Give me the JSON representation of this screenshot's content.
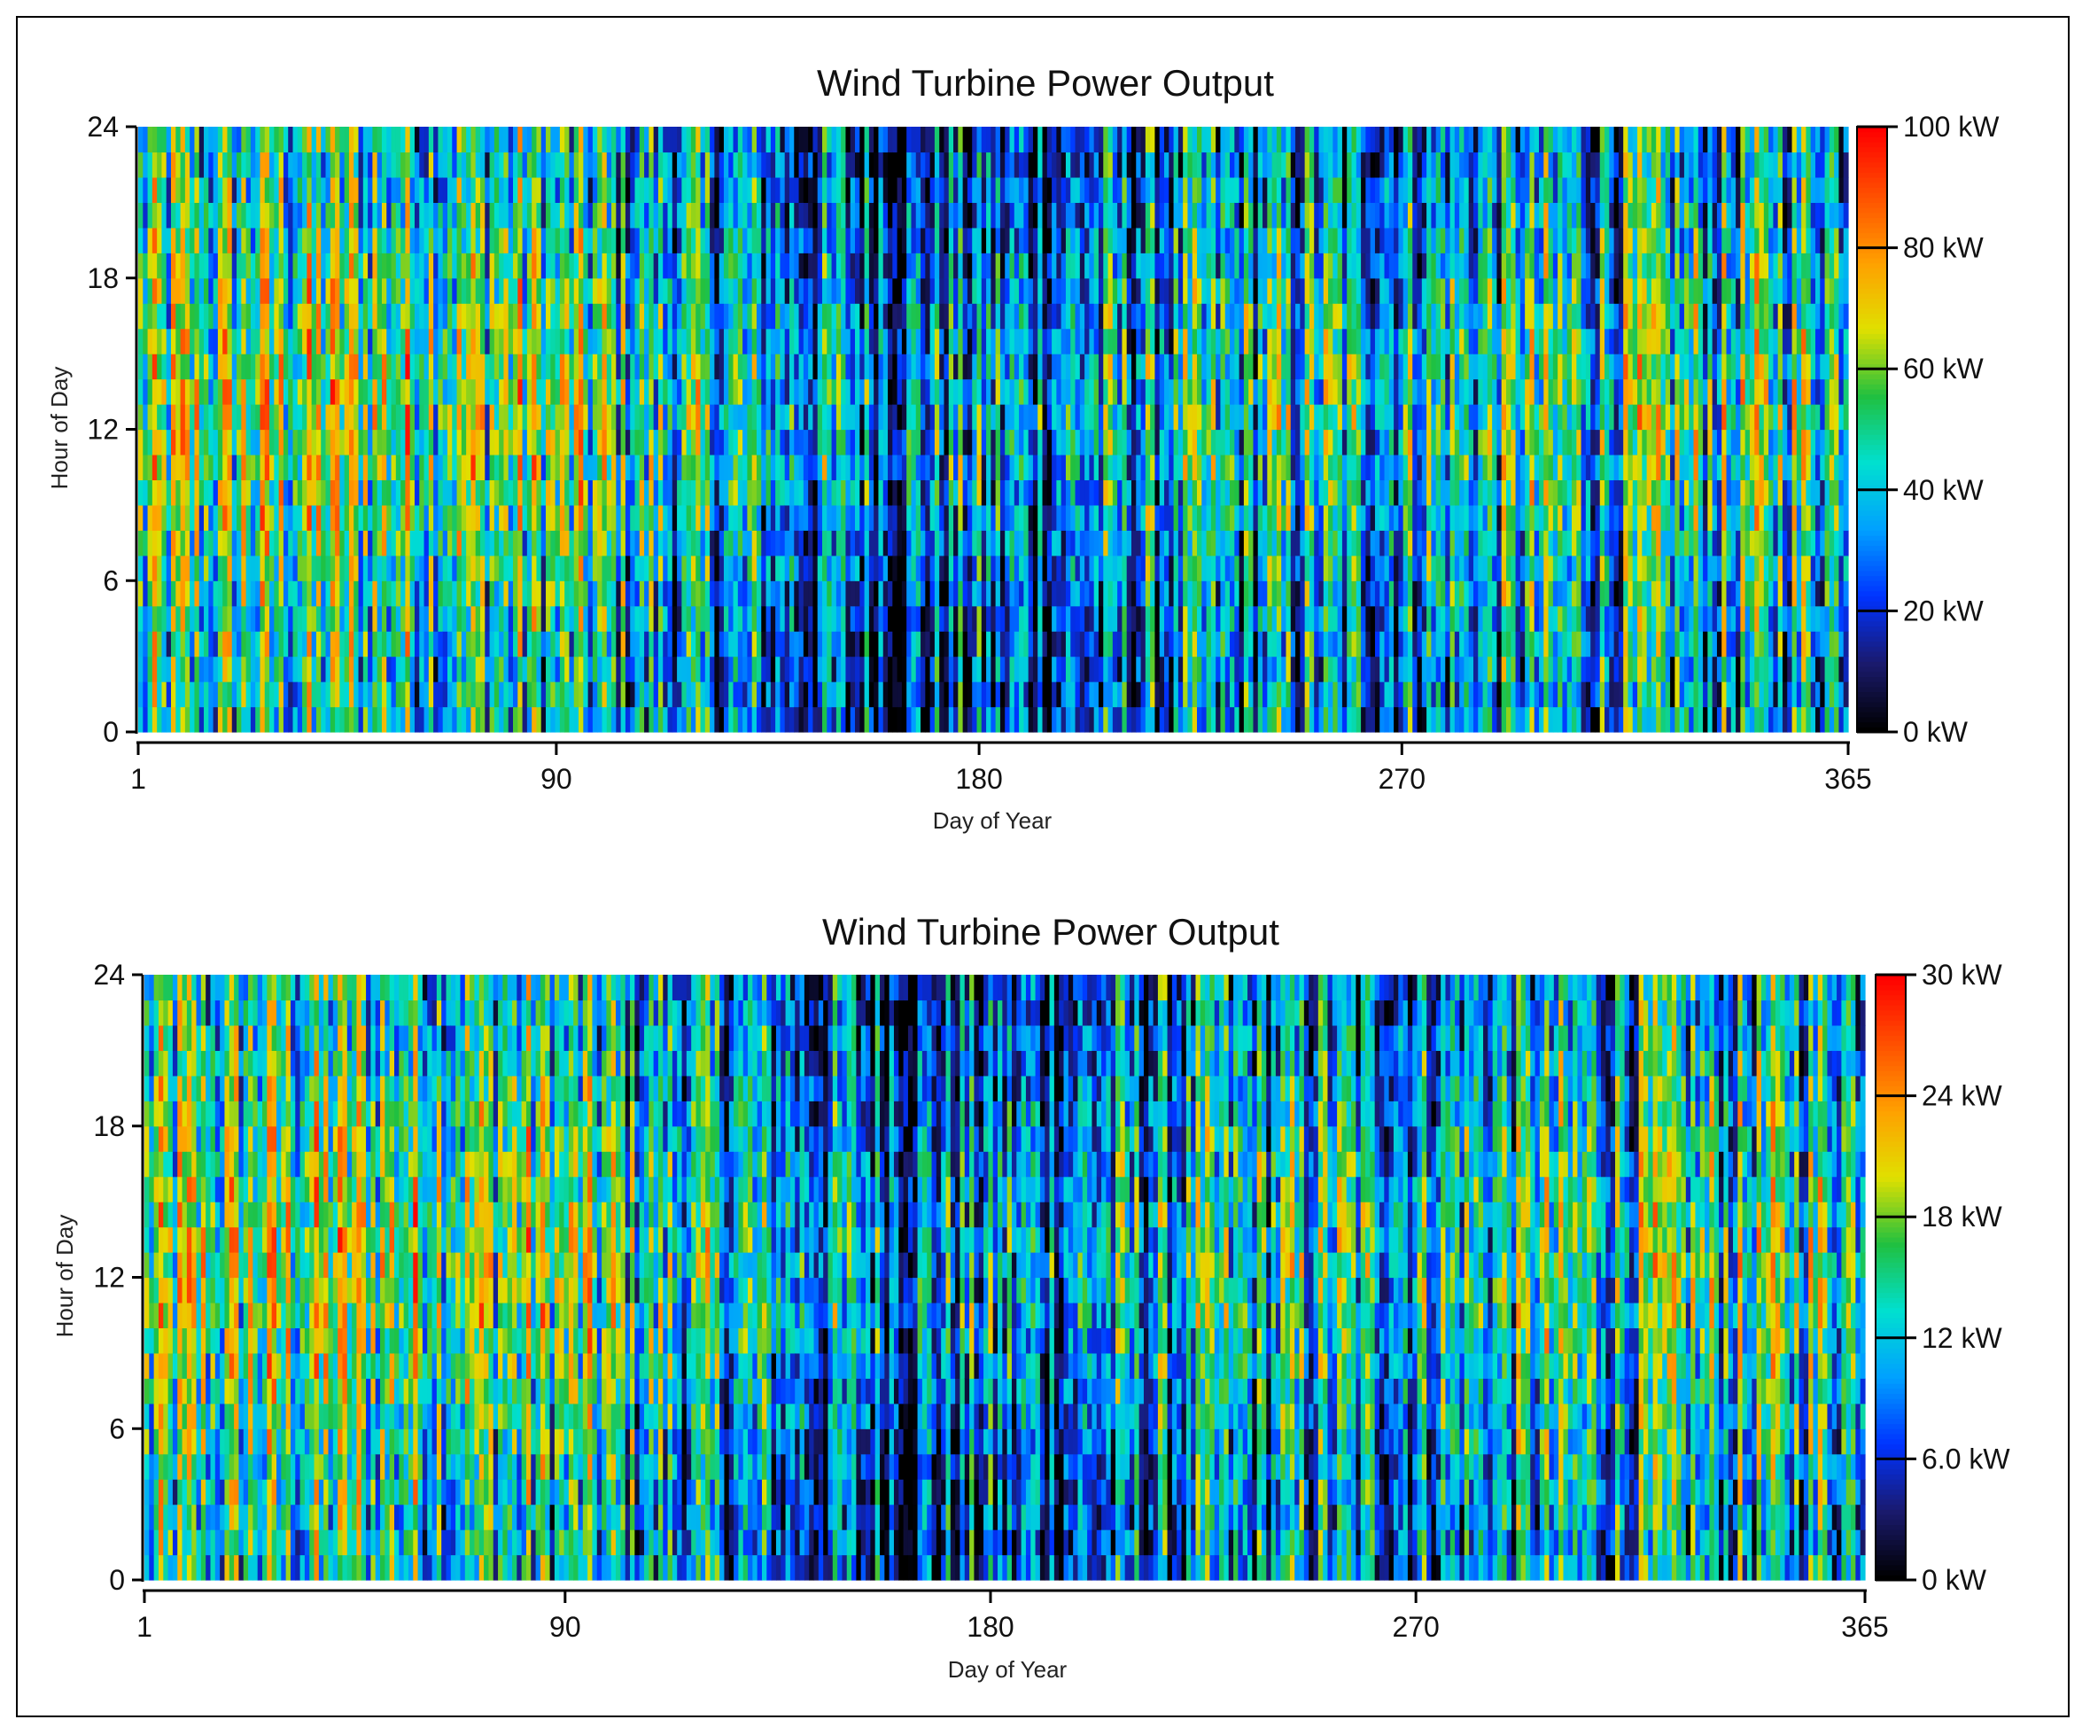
{
  "chart_data": [
    {
      "type": "heatmap",
      "title": "Wind Turbine Power Output",
      "xlabel": "Day of Year",
      "ylabel": "Hour of Day",
      "x_ticks": [
        "1",
        "90",
        "180",
        "270",
        "365"
      ],
      "x_tick_values": [
        1,
        90,
        180,
        270,
        365
      ],
      "y_ticks": [
        "0",
        "6",
        "12",
        "18",
        "24"
      ],
      "y_tick_values": [
        0,
        6,
        12,
        18,
        24
      ],
      "xlim": [
        1,
        365
      ],
      "ylim": [
        0,
        24
      ],
      "colorbar": {
        "labels": [
          "0 kW",
          "20 kW",
          "40 kW",
          "60 kW",
          "80 kW",
          "100 kW"
        ],
        "values": [
          0,
          20,
          40,
          60,
          80,
          100
        ],
        "range": [
          0,
          100
        ]
      }
    },
    {
      "type": "heatmap",
      "title": "Wind Turbine Power Output",
      "xlabel": "Day of Year",
      "ylabel": "Hour of Day",
      "x_ticks": [
        "1",
        "90",
        "180",
        "270",
        "365"
      ],
      "x_tick_values": [
        1,
        90,
        180,
        270,
        365
      ],
      "y_ticks": [
        "0",
        "6",
        "12",
        "18",
        "24"
      ],
      "y_tick_values": [
        0,
        6,
        12,
        18,
        24
      ],
      "xlim": [
        1,
        365
      ],
      "ylim": [
        0,
        24
      ],
      "colorbar": {
        "labels": [
          "0 kW",
          "6.0 kW",
          "12 kW",
          "18 kW",
          "24 kW",
          "30 kW"
        ],
        "values": [
          0,
          6,
          12,
          18,
          24,
          30
        ],
        "range": [
          0,
          30
        ]
      }
    }
  ],
  "colormap": [
    "#000000",
    "#1a1a6e",
    "#0033ff",
    "#00a0ff",
    "#00e0d0",
    "#20c040",
    "#e0e000",
    "#ffa000",
    "#ff5000",
    "#ff0000"
  ]
}
